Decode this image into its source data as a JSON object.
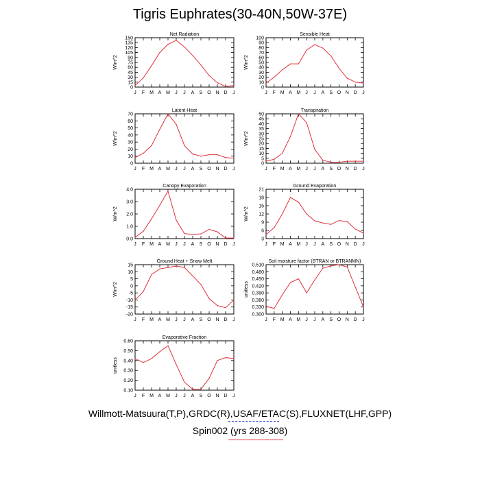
{
  "title": "Tigris Euphrates(30-40N,50W-37E)",
  "credit": "Willmott-Matsuura(T,P),GRDC(R),USAF/ETAC(S),FLUXNET(LHF,GPP)",
  "run_label": "Spin002 (yrs 288-308)",
  "colors": {
    "series": "#e0303a",
    "obs_legend": "#4a5fd0"
  },
  "chart_data": [
    {
      "type": "line",
      "title": "Net Radiation",
      "ylabel": "W/m^2",
      "x": [
        "J",
        "F",
        "M",
        "A",
        "M",
        "J",
        "J",
        "A",
        "S",
        "O",
        "N",
        "D",
        "J"
      ],
      "ylim": [
        0,
        150
      ],
      "yticks": [
        "0",
        "15",
        "30",
        "45",
        "60",
        "75",
        "90",
        "105",
        "120",
        "135",
        "150"
      ],
      "series": [
        {
          "values": [
            5,
            28,
            65,
            105,
            130,
            142,
            122,
            96,
            67,
            35,
            13,
            2,
            5
          ]
        }
      ]
    },
    {
      "type": "line",
      "title": "Sensible Heat",
      "ylabel": "W/m^2",
      "x": [
        "J",
        "F",
        "M",
        "A",
        "M",
        "J",
        "J",
        "A",
        "S",
        "O",
        "N",
        "D",
        "J"
      ],
      "ylim": [
        0,
        100
      ],
      "yticks": [
        "0",
        "10",
        "20",
        "30",
        "40",
        "50",
        "60",
        "70",
        "80",
        "90",
        "100"
      ],
      "series": [
        {
          "values": [
            8,
            20,
            35,
            47,
            47,
            75,
            86,
            79,
            63,
            38,
            18,
            10,
            8
          ]
        }
      ]
    },
    {
      "type": "line",
      "title": "Latent Heat",
      "ylabel": "W/m^2",
      "x": [
        "J",
        "F",
        "M",
        "A",
        "M",
        "J",
        "J",
        "A",
        "S",
        "O",
        "N",
        "D",
        "J"
      ],
      "ylim": [
        0,
        70
      ],
      "yticks": [
        "0",
        "10",
        "20",
        "30",
        "40",
        "50",
        "60",
        "70"
      ],
      "series": [
        {
          "values": [
            8,
            14,
            25,
            48,
            70,
            55,
            25,
            13,
            10,
            12,
            12,
            8,
            7
          ]
        }
      ]
    },
    {
      "type": "line",
      "title": "Transpiration",
      "ylabel": "W/m^2",
      "x": [
        "J",
        "F",
        "M",
        "A",
        "M",
        "J",
        "J",
        "A",
        "S",
        "O",
        "N",
        "D",
        "J"
      ],
      "ylim": [
        0,
        50
      ],
      "yticks": [
        "0",
        "5",
        "10",
        "15",
        "20",
        "25",
        "30",
        "35",
        "40",
        "45",
        "50"
      ],
      "series": [
        {
          "values": [
            2,
            4,
            10,
            27,
            50,
            41,
            14,
            3,
            1,
            1,
            2,
            2,
            2
          ]
        }
      ]
    },
    {
      "type": "line",
      "title": "Canopy Evaporation",
      "ylabel": "W/m^2",
      "x": [
        "J",
        "F",
        "M",
        "A",
        "M",
        "J",
        "J",
        "A",
        "S",
        "O",
        "N",
        "D",
        "J"
      ],
      "ylim": [
        0,
        4
      ],
      "yticks": [
        "0.0",
        "1.0",
        "2.0",
        "3.0",
        "4.0"
      ],
      "series": [
        {
          "values": [
            0.1,
            0.6,
            1.6,
            2.7,
            3.85,
            1.5,
            0.4,
            0.35,
            0.38,
            0.75,
            0.55,
            0.05,
            0.05
          ]
        }
      ]
    },
    {
      "type": "line",
      "title": "Ground Evaporation",
      "ylabel": "W/m^2",
      "x": [
        "J",
        "F",
        "M",
        "A",
        "M",
        "J",
        "J",
        "A",
        "S",
        "O",
        "N",
        "D",
        "J"
      ],
      "ylim": [
        3,
        21
      ],
      "yticks": [
        "3",
        "6",
        "9",
        "12",
        "15",
        "18",
        "21"
      ],
      "series": [
        {
          "values": [
            4.5,
            7,
            12,
            18,
            16.3,
            12,
            9.5,
            8.7,
            8.2,
            9.6,
            9.2,
            6.5,
            5
          ]
        }
      ]
    },
    {
      "type": "line",
      "title": "Ground Heat + Snow Melt",
      "ylabel": "W/m^2",
      "x": [
        "J",
        "F",
        "M",
        "A",
        "M",
        "J",
        "J",
        "A",
        "S",
        "O",
        "N",
        "D",
        "J"
      ],
      "ylim": [
        -20,
        15
      ],
      "yticks": [
        "-20",
        "-15",
        "-10",
        "-5",
        "0",
        "5",
        "10",
        "15"
      ],
      "series": [
        {
          "values": [
            -10,
            -4,
            8,
            12,
            13,
            14,
            13,
            7,
            1,
            -9,
            -14,
            -15.5,
            -10
          ]
        }
      ]
    },
    {
      "type": "line",
      "title": "Soil moisture factor (BTRAN or BTRANMN)",
      "ylabel": "unitless",
      "x": [
        "J",
        "F",
        "M",
        "A",
        "M",
        "J",
        "J",
        "A",
        "S",
        "O",
        "N",
        "D",
        "J"
      ],
      "ylim": [
        0.3,
        0.51
      ],
      "yticks": [
        "0.300",
        "0.330",
        "0.360",
        "0.390",
        "0.420",
        "0.450",
        "0.480",
        "0.510"
      ],
      "series": [
        {
          "values": [
            0.333,
            0.324,
            0.382,
            0.434,
            0.45,
            0.39,
            0.445,
            0.495,
            0.505,
            0.51,
            0.5,
            0.415,
            0.33
          ]
        }
      ]
    },
    {
      "type": "line",
      "title": "Evaporative Fraction",
      "ylabel": "unitless",
      "x": [
        "J",
        "F",
        "M",
        "A",
        "M",
        "J",
        "J",
        "A",
        "S",
        "O",
        "N",
        "D",
        "J"
      ],
      "ylim": [
        0.1,
        0.6
      ],
      "yticks": [
        "0.10",
        "0.20",
        "0.30",
        "0.40",
        "0.50",
        "0.60"
      ],
      "series": [
        {
          "values": [
            0.42,
            0.38,
            0.42,
            0.49,
            0.55,
            0.36,
            0.18,
            0.11,
            0.11,
            0.22,
            0.4,
            0.43,
            0.42
          ]
        }
      ]
    }
  ]
}
